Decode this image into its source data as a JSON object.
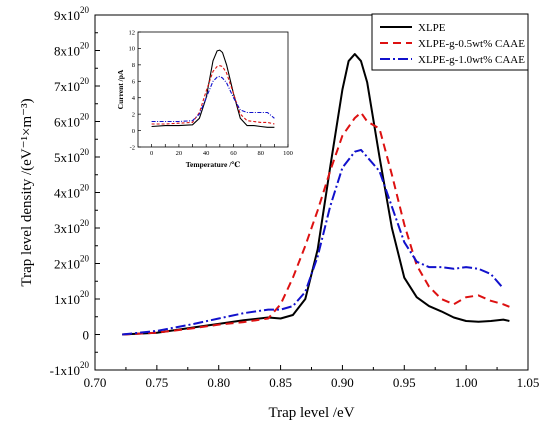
{
  "chart_data": [
    {
      "type": "line",
      "xlabel": "Trap level /eV",
      "ylabel": "Trap level density /(eV⁻¹×m⁻³)",
      "xlim": [
        0.7,
        1.05
      ],
      "ylim": [
        -1e+20,
        9e+20
      ],
      "x_ticks": [
        0.7,
        0.75,
        0.8,
        0.85,
        0.9,
        0.95,
        1.0,
        1.05
      ],
      "x_tick_labels": [
        "0.70",
        "0.75",
        "0.80",
        "0.85",
        "0.90",
        "0.95",
        "1.00",
        "1.05"
      ],
      "y_ticks": [
        -1e+20,
        0,
        1e+20,
        2e+20,
        3e+20,
        4e+20,
        5e+20,
        6e+20,
        7e+20,
        8e+20,
        9e+20
      ],
      "y_tick_labels": [
        {
          "mant": "-1x10",
          "exp": "20"
        },
        {
          "mant": "0",
          "exp": ""
        },
        {
          "mant": "1x10",
          "exp": "20"
        },
        {
          "mant": "2x10",
          "exp": "20"
        },
        {
          "mant": "3x10",
          "exp": "20"
        },
        {
          "mant": "4x10",
          "exp": "20"
        },
        {
          "mant": "5x10",
          "exp": "20"
        },
        {
          "mant": "6x10",
          "exp": "20"
        },
        {
          "mant": "7x10",
          "exp": "20"
        },
        {
          "mant": "8x10",
          "exp": "20"
        },
        {
          "mant": "9x10",
          "exp": "20"
        }
      ],
      "legend_position": "top-right",
      "series": [
        {
          "name": "XLPE",
          "color": "#000000",
          "dash": "solid",
          "x": [
            0.722,
            0.75,
            0.78,
            0.8,
            0.82,
            0.84,
            0.85,
            0.86,
            0.87,
            0.88,
            0.89,
            0.9,
            0.905,
            0.91,
            0.915,
            0.92,
            0.93,
            0.94,
            0.95,
            0.96,
            0.97,
            0.98,
            0.99,
            1.0,
            1.01,
            1.02,
            1.03,
            1.035
          ],
          "y": [
            0.0,
            5e+18,
            2e+19,
            3e+19,
            4e+19,
            4.8e+19,
            4.5e+19,
            5.5e+19,
            1e+20,
            2.4e+20,
            4.7e+20,
            6.9e+20,
            7.7e+20,
            7.9e+20,
            7.7e+20,
            7.1e+20,
            5e+20,
            3e+20,
            1.6e+20,
            1.05e+20,
            8e+19,
            6.5e+19,
            4.8e+19,
            3.8e+19,
            3.6e+19,
            3.8e+19,
            4.2e+19,
            3.8e+19
          ]
        },
        {
          "name": "XLPE-g-0.5wt% CAAE",
          "color": "#dd1111",
          "dash": "8,5",
          "x": [
            0.722,
            0.75,
            0.78,
            0.8,
            0.82,
            0.84,
            0.85,
            0.86,
            0.87,
            0.88,
            0.89,
            0.9,
            0.91,
            0.915,
            0.92,
            0.93,
            0.94,
            0.95,
            0.96,
            0.97,
            0.98,
            0.99,
            1.0,
            1.01,
            1.02,
            1.03,
            1.035
          ],
          "y": [
            0.0,
            5e+18,
            1.8e+19,
            2.8e+19,
            3.5e+19,
            4.5e+19,
            8.5e+19,
            1.6e+20,
            2.5e+20,
            3.5e+20,
            4.6e+20,
            5.6e+20,
            6.1e+20,
            6.25e+20,
            6e+20,
            5.8e+20,
            4.5e+20,
            3.1e+20,
            1.95e+20,
            1.35e+20,
            1e+20,
            8.5e+19,
            1.05e+20,
            1.1e+20,
            9.5e+19,
            8.5e+19,
            7.8e+19
          ]
        },
        {
          "name": "XLPE-g-1.0wt% CAAE",
          "color": "#1111cc",
          "dash": "10,3,2,3",
          "x": [
            0.722,
            0.75,
            0.78,
            0.8,
            0.82,
            0.84,
            0.85,
            0.86,
            0.87,
            0.88,
            0.89,
            0.9,
            0.91,
            0.915,
            0.92,
            0.93,
            0.94,
            0.95,
            0.96,
            0.97,
            0.98,
            0.99,
            1.0,
            1.01,
            1.02,
            1.03
          ],
          "y": [
            0.0,
            1e+19,
            3e+19,
            4.5e+19,
            6e+19,
            7e+19,
            7e+19,
            8e+19,
            1.2e+20,
            2.2e+20,
            3.6e+20,
            4.7e+20,
            5.15e+20,
            5.2e+20,
            5e+20,
            4.6e+20,
            3.6e+20,
            2.6e+20,
            2.05e+20,
            1.9e+20,
            1.9e+20,
            1.85e+20,
            1.9e+20,
            1.85e+20,
            1.7e+20,
            1.3e+20
          ]
        }
      ]
    },
    {
      "type": "line",
      "xlabel": "Temperature /℃",
      "ylabel": "Current /pA",
      "xlim": [
        -10,
        100
      ],
      "ylim": [
        -2,
        12
      ],
      "x_ticks": [
        0,
        10,
        20,
        30,
        40,
        50,
        60,
        70,
        80,
        90,
        100
      ],
      "y_ticks": [
        -2,
        0,
        2,
        4,
        6,
        8,
        10,
        12
      ],
      "series": [
        {
          "color": "#000000",
          "dash": "solid",
          "x": [
            0,
            10,
            20,
            30,
            35,
            40,
            45,
            48,
            50,
            52,
            55,
            60,
            65,
            70,
            75,
            80,
            85,
            90
          ],
          "y": [
            0.5,
            0.6,
            0.6,
            0.7,
            1.5,
            4.0,
            8.5,
            9.7,
            9.8,
            9.5,
            8.0,
            4.5,
            1.5,
            0.6,
            0.6,
            0.5,
            0.4,
            0.4
          ]
        },
        {
          "color": "#dd1111",
          "dash": "3,2",
          "x": [
            0,
            10,
            20,
            30,
            35,
            40,
            45,
            48,
            50,
            52,
            55,
            60,
            65,
            70,
            75,
            80,
            85,
            90
          ],
          "y": [
            0.8,
            0.8,
            0.9,
            1.0,
            2.2,
            4.8,
            7.2,
            7.8,
            7.9,
            7.8,
            7.0,
            4.5,
            2.0,
            1.2,
            1.1,
            1.0,
            1.0,
            0.8
          ]
        },
        {
          "color": "#1111cc",
          "dash": "4,1.5,1,1.5",
          "x": [
            0,
            10,
            20,
            30,
            35,
            40,
            45,
            48,
            50,
            52,
            55,
            60,
            65,
            70,
            75,
            80,
            85,
            90
          ],
          "y": [
            1.1,
            1.1,
            1.1,
            1.2,
            2.0,
            4.0,
            6.0,
            6.5,
            6.6,
            6.4,
            5.8,
            4.0,
            2.5,
            2.2,
            2.2,
            2.2,
            2.2,
            1.5
          ]
        }
      ]
    }
  ]
}
